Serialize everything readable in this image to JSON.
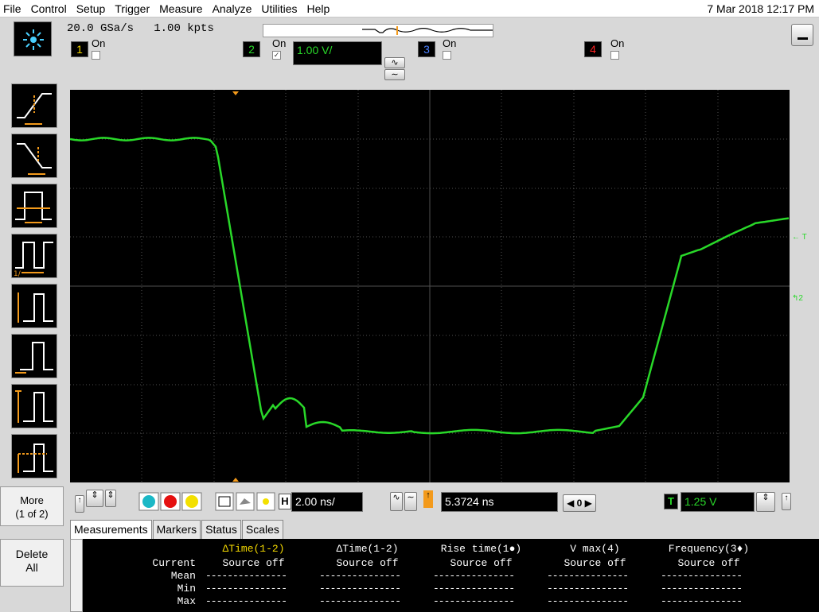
{
  "menu": {
    "items": [
      "File",
      "Control",
      "Setup",
      "Trigger",
      "Measure",
      "Analyze",
      "Utilities",
      "Help"
    ],
    "datetime": "7 Mar 2018 12:17 PM"
  },
  "acquisition": {
    "sample_rate": "20.0 GSa/s",
    "memory_depth": "1.00 kpts"
  },
  "channels": [
    {
      "num": "1",
      "status": "On",
      "enabled": false,
      "color": "#f3d800"
    },
    {
      "num": "2",
      "status": "On",
      "enabled": true,
      "color": "#29d829",
      "scale": "1.00 V/"
    },
    {
      "num": "3",
      "status": "On",
      "enabled": false,
      "color": "#4a80ff"
    },
    {
      "num": "4",
      "status": "On",
      "enabled": false,
      "color": "#ff2222"
    }
  ],
  "timebase": {
    "horizontal_label": "H",
    "scale": "2.00 ns/",
    "delay": "5.3724 ns",
    "trigger_label": "T",
    "trigger_level": "1.25 V",
    "zoom_value": "0"
  },
  "sidebar": {
    "more_label": "More\n(1 of 2)",
    "delete_label": "Delete\nAll"
  },
  "tabs": [
    "Measurements",
    "Markers",
    "Status",
    "Scales"
  ],
  "measurements": {
    "columns": [
      {
        "title": "ΔTime(1-2)",
        "value": "Source off"
      },
      {
        "title": "ΔTime(1-2)",
        "value": "Source off"
      },
      {
        "title": "Rise time(1●)",
        "value": "Source off"
      },
      {
        "title": "V max(4)",
        "value": "Source off"
      },
      {
        "title": "Frequency(3♦)",
        "value": "Source off"
      }
    ],
    "row_labels": [
      "Current",
      "Mean",
      "Min",
      "Max"
    ],
    "dashes": "---------------"
  },
  "waveform_markers": {
    "trigger_marker": "T",
    "channel_marker": "2"
  },
  "colors": {
    "trace": "#29d829",
    "scope_bg": "#000000",
    "grid": "#505050",
    "accent": "#f39a1b"
  }
}
